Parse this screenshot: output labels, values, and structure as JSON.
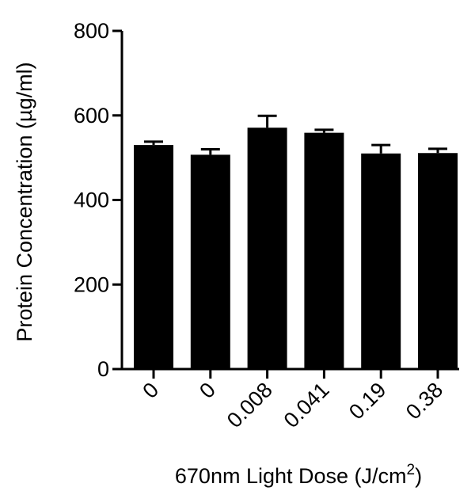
{
  "chart_data": {
    "type": "bar",
    "categories": [
      "0",
      "0",
      "0.008",
      "0.041",
      "0.19",
      "0.38"
    ],
    "values": [
      530,
      507,
      571,
      559,
      510,
      511
    ],
    "errors": [
      8,
      13,
      28,
      7,
      20,
      10
    ],
    "xlabel": "670nm Light Dose (J/cm",
    "xlabel_superscript": "2",
    "xlabel_suffix": ")",
    "ylabel": "Protein Concentration (µg/ml)",
    "ylim": [
      0,
      800
    ],
    "yticks": [
      0,
      200,
      400,
      600,
      800
    ],
    "bar_color": "#000000",
    "grid": false,
    "legend": "none"
  }
}
